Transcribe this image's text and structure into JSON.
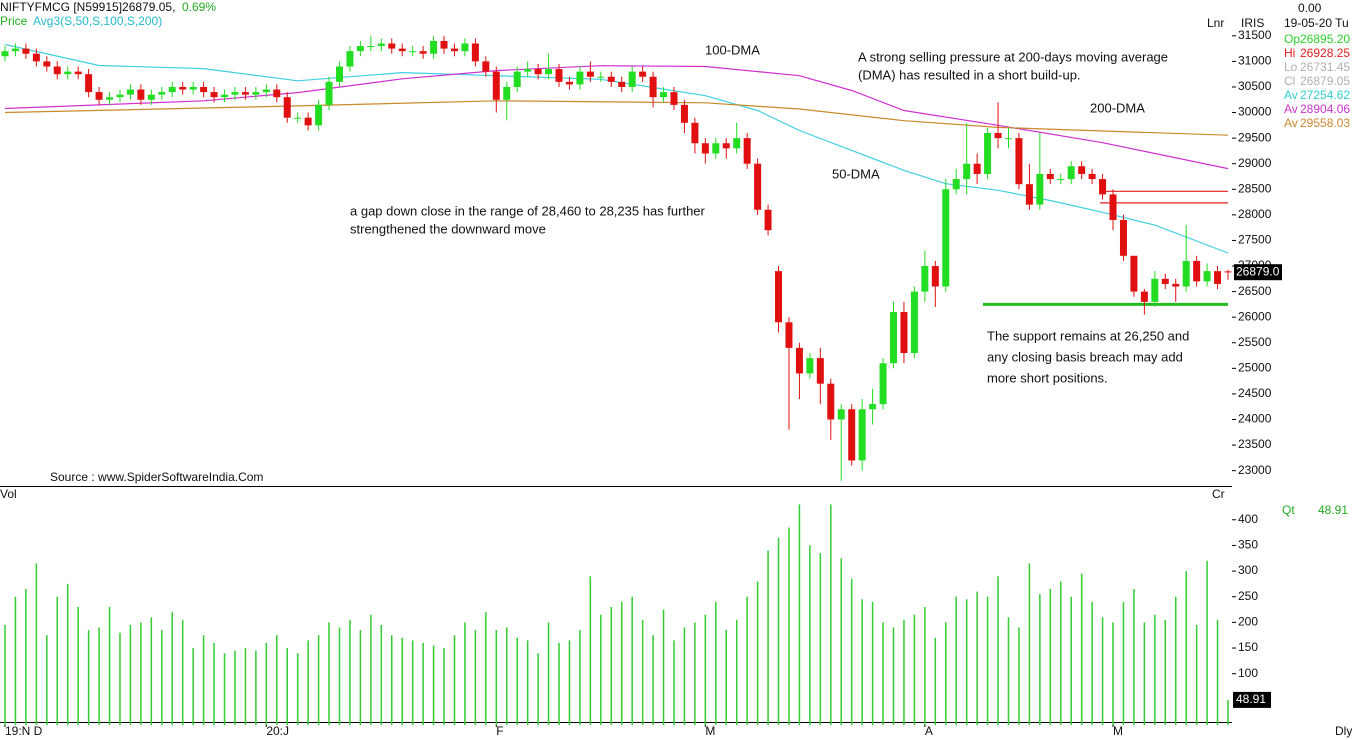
{
  "header": {
    "symbol": "NIFTYFMCG [N59915]26879.05,",
    "change": "0.69%",
    "price_legend": "Price",
    "avg_legend": "Avg3(S,50,S,100,S,200)",
    "scale": "Lnr",
    "period": "Dly",
    "source": "Source : www.SpiderSoftwareIndia.Com"
  },
  "info": {
    "top": "0.00",
    "exchange": "IRIS",
    "date": "19-05-20 Tu",
    "rows": [
      {
        "label": "Op",
        "value": "26895.20",
        "color": "#2ccf2c"
      },
      {
        "label": "Hi",
        "value": "26928.25",
        "color": "#e02020"
      },
      {
        "label": "Lo",
        "value": "26731.45",
        "color": "#b0b0b0"
      },
      {
        "label": "Cl",
        "value": "26879.05",
        "color": "#b0b0b0"
      },
      {
        "label": "Av",
        "value": "27254.62",
        "color": "#33cccc"
      },
      {
        "label": "Av",
        "value": "28904.06",
        "color": "#cc33cc"
      },
      {
        "label": "Av",
        "value": "29558.03",
        "color": "#cc8833"
      }
    ]
  },
  "annotations": [
    "A strong selling pressure at 200-days moving average",
    "(DMA) has resulted in a short build-up.",
    "a gap down close in the range of 28,460 to 28,235 has further",
    "strengthened the downward move",
    "The support remains at 26,250 and",
    "any closing basis breach may add",
    "more short positions."
  ],
  "chart_data": {
    "type": "candlestick",
    "categories": [
      "19:N D",
      null,
      null,
      null,
      null,
      null,
      null,
      null,
      null,
      null,
      null,
      null,
      null,
      null,
      null,
      null,
      null,
      null,
      null,
      null,
      null,
      null,
      null,
      null,
      null,
      "20:J",
      null,
      null,
      null,
      null,
      null,
      null,
      null,
      null,
      null,
      null,
      null,
      null,
      null,
      null,
      null,
      null,
      null,
      null,
      null,
      null,
      null,
      "F",
      null,
      null,
      null,
      null,
      null,
      null,
      null,
      null,
      null,
      null,
      null,
      null,
      null,
      null,
      null,
      null,
      null,
      null,
      null,
      "M",
      null,
      null,
      null,
      null,
      null,
      null,
      null,
      null,
      null,
      null,
      null,
      null,
      null,
      null,
      null,
      null,
      null,
      null,
      null,
      null,
      "A",
      null,
      null,
      null,
      null,
      null,
      null,
      null,
      null,
      null,
      null,
      null,
      null,
      null,
      null,
      null,
      null,
      null,
      "M",
      null,
      null,
      null,
      null,
      null,
      null,
      null,
      null,
      null,
      null,
      null
    ],
    "open": [
      31100,
      31200,
      31250,
      31150,
      31000,
      30900,
      30750,
      30800,
      30750,
      30400,
      30250,
      30300,
      30350,
      30450,
      30250,
      30350,
      30400,
      30500,
      30450,
      30500,
      30400,
      30300,
      30350,
      30400,
      30350,
      30400,
      30450,
      30300,
      29900,
      29900,
      29750,
      30150,
      30600,
      30900,
      31200,
      31300,
      31300,
      31350,
      31250,
      31200,
      31200,
      31150,
      31400,
      31250,
      31200,
      31350,
      31000,
      30800,
      30250,
      30500,
      30800,
      30850,
      30750,
      30850,
      30600,
      30550,
      30800,
      30700,
      30700,
      30600,
      30500,
      30800,
      30700,
      30300,
      30400,
      30150,
      29800,
      29400,
      29200,
      29400,
      29300,
      29500,
      29000,
      28100,
      26900,
      25900,
      25400,
      24900,
      25200,
      24700,
      24000,
      24200,
      23200,
      24200,
      24300,
      25100,
      26100,
      25300,
      26500,
      27000,
      26600,
      28500,
      28700,
      29000,
      28800,
      29600,
      29500,
      29500,
      28600,
      28200,
      28800,
      28700,
      28700,
      28950,
      28800,
      28700,
      28400,
      27900,
      27200,
      26500,
      26300,
      26750,
      26650,
      26600,
      27100,
      26700,
      26900,
      26895.2
    ],
    "high": [
      31300,
      31350,
      31350,
      31250,
      31100,
      31000,
      30900,
      30900,
      30850,
      30500,
      30400,
      30450,
      30550,
      30550,
      30450,
      30500,
      30600,
      30600,
      30600,
      30600,
      30500,
      30450,
      30500,
      30500,
      30500,
      30550,
      30550,
      30400,
      30000,
      30000,
      30250,
      30700,
      31000,
      31300,
      31400,
      31500,
      31450,
      31450,
      31350,
      31300,
      31300,
      31500,
      31500,
      31350,
      31450,
      31450,
      31100,
      30900,
      30600,
      30900,
      31000,
      30950,
      31150,
      30950,
      30700,
      30900,
      31000,
      30800,
      30800,
      30700,
      30900,
      30900,
      30800,
      30500,
      30500,
      30250,
      29900,
      29500,
      29500,
      29500,
      29800,
      29600,
      29100,
      28200,
      27000,
      26000,
      25500,
      25300,
      25400,
      24800,
      24300,
      24300,
      24400,
      24600,
      25200,
      26300,
      26300,
      26600,
      27300,
      27100,
      28700,
      28900,
      29800,
      29200,
      29700,
      30200,
      29700,
      29600,
      29000,
      29600,
      28900,
      28800,
      29050,
      29050,
      28900,
      28800,
      28500,
      28000,
      27200,
      26550,
      26900,
      26850,
      26750,
      27800,
      27200,
      27050,
      27000,
      26928.25
    ],
    "low": [
      31000,
      31100,
      31050,
      30900,
      30800,
      30650,
      30650,
      30650,
      30300,
      30150,
      30150,
      30200,
      30250,
      30150,
      30150,
      30250,
      30300,
      30350,
      30350,
      30300,
      30200,
      30200,
      30250,
      30250,
      30250,
      30300,
      30200,
      29800,
      29800,
      29650,
      29650,
      30050,
      30500,
      30800,
      31100,
      31200,
      31200,
      31150,
      31100,
      31100,
      31050,
      31050,
      31150,
      31100,
      31100,
      30900,
      30700,
      30000,
      29850,
      30400,
      30700,
      30650,
      30650,
      30500,
      30450,
      30450,
      30600,
      30600,
      30500,
      30400,
      30400,
      30600,
      30100,
      30200,
      30050,
      29600,
      29200,
      29000,
      29100,
      29100,
      29200,
      28900,
      28000,
      27600,
      25700,
      23800,
      24400,
      24800,
      24300,
      23600,
      22800,
      23100,
      23000,
      23900,
      24200,
      25000,
      25100,
      25200,
      26300,
      26200,
      26500,
      28400,
      28400,
      28600,
      28700,
      29300,
      29300,
      28500,
      28100,
      28100,
      28600,
      28600,
      28600,
      28700,
      28600,
      28300,
      27700,
      27100,
      26400,
      26050,
      26200,
      26550,
      26300,
      26500,
      26600,
      26600,
      26550,
      26731.45
    ],
    "close": [
      31200,
      31250,
      31150,
      31000,
      30900,
      30750,
      30800,
      30750,
      30400,
      30250,
      30300,
      30350,
      30450,
      30250,
      30350,
      30400,
      30500,
      30450,
      30500,
      30400,
      30300,
      30350,
      30400,
      30350,
      30400,
      30450,
      30300,
      29900,
      29900,
      29750,
      30150,
      30600,
      30900,
      31200,
      31300,
      31300,
      31350,
      31250,
      31200,
      31200,
      31150,
      31400,
      31250,
      31200,
      31350,
      31000,
      30800,
      30250,
      30500,
      30800,
      30850,
      30750,
      30850,
      30600,
      30550,
      30800,
      30700,
      30700,
      30600,
      30500,
      30800,
      30700,
      30300,
      30400,
      30150,
      29800,
      29400,
      29200,
      29400,
      29300,
      29500,
      29000,
      28100,
      27700,
      25900,
      25400,
      24900,
      25200,
      24700,
      24000,
      24200,
      23200,
      24200,
      24300,
      25100,
      26100,
      25300,
      26500,
      27000,
      26600,
      28500,
      28700,
      29000,
      28800,
      29600,
      29500,
      29500,
      28600,
      28200,
      28800,
      28700,
      28700,
      28950,
      28800,
      28700,
      28400,
      27900,
      27200,
      26500,
      26300,
      26750,
      26650,
      26600,
      27100,
      26700,
      26900,
      26650,
      26879.05
    ],
    "up_color": "#22dd22",
    "down_color": "#e01010",
    "ylim": [
      22700,
      32200
    ],
    "yticks": [
      23000,
      23500,
      24000,
      24500,
      25000,
      25500,
      26000,
      26500,
      27000,
      27500,
      28000,
      28500,
      29000,
      29500,
      30000,
      30500,
      31000,
      31500
    ],
    "price_tag": "26879.0",
    "series": [
      {
        "name": "50-DMA",
        "color": "#40d0e0",
        "x": [
          0,
          9,
          19,
          28,
          38,
          47,
          57,
          67,
          72,
          76,
          81,
          86,
          90,
          95,
          100,
          105,
          110,
          117
        ],
        "values": [
          31330,
          30920,
          30860,
          30620,
          30780,
          30720,
          30650,
          30330,
          30040,
          29650,
          29260,
          28870,
          28610,
          28480,
          28280,
          28050,
          27800,
          27254.62
        ]
      },
      {
        "name": "100-DMA",
        "color": "#d030d0",
        "x": [
          0,
          19,
          28,
          38,
          47,
          57,
          67,
          76,
          81,
          86,
          95,
          105,
          117
        ],
        "values": [
          30080,
          30230,
          30390,
          30660,
          30820,
          30915,
          30900,
          30720,
          30430,
          30040,
          29750,
          29410,
          28904.06
        ]
      },
      {
        "name": "200-DMA",
        "color": "#c88a2a",
        "x": [
          0,
          28,
          47,
          67,
          76,
          86,
          95,
          117
        ],
        "values": [
          30000,
          30130,
          30230,
          30190,
          30070,
          29840,
          29710,
          29558.03
        ]
      }
    ],
    "levels": [
      {
        "value": 28460,
        "color": "#e02020"
      },
      {
        "value": 28235,
        "color": "#e02020"
      },
      {
        "value": 26250,
        "color": "#22bb22"
      }
    ],
    "volume": {
      "label": "Vol",
      "unit": "Cr",
      "qt_label": "Qt",
      "qt_value": 48.91,
      "color": "#33cc33",
      "values": [
        195,
        250,
        265,
        315,
        175,
        250,
        275,
        230,
        185,
        190,
        230,
        180,
        195,
        200,
        210,
        185,
        220,
        205,
        150,
        175,
        160,
        140,
        145,
        150,
        145,
        160,
        175,
        150,
        140,
        165,
        175,
        200,
        190,
        205,
        185,
        215,
        195,
        175,
        170,
        165,
        160,
        155,
        150,
        175,
        200,
        185,
        220,
        185,
        190,
        170,
        165,
        140,
        200,
        160,
        165,
        185,
        290,
        215,
        230,
        240,
        250,
        205,
        175,
        225,
        165,
        190,
        200,
        215,
        240,
        185,
        205,
        250,
        280,
        340,
        365,
        385,
        430,
        350,
        335,
        430,
        325,
        285,
        245,
        240,
        200,
        190,
        205,
        215,
        230,
        170,
        200,
        250,
        245,
        260,
        250,
        290,
        210,
        190,
        315,
        255,
        265,
        280,
        250,
        295,
        240,
        210,
        200,
        240,
        265,
        200,
        215,
        205,
        250,
        300,
        195,
        320,
        205,
        48.91
      ],
      "ylim": [
        0,
        458
      ],
      "yticks": [
        100,
        150,
        200,
        250,
        300,
        350,
        400
      ],
      "tag": 48.91
    }
  }
}
